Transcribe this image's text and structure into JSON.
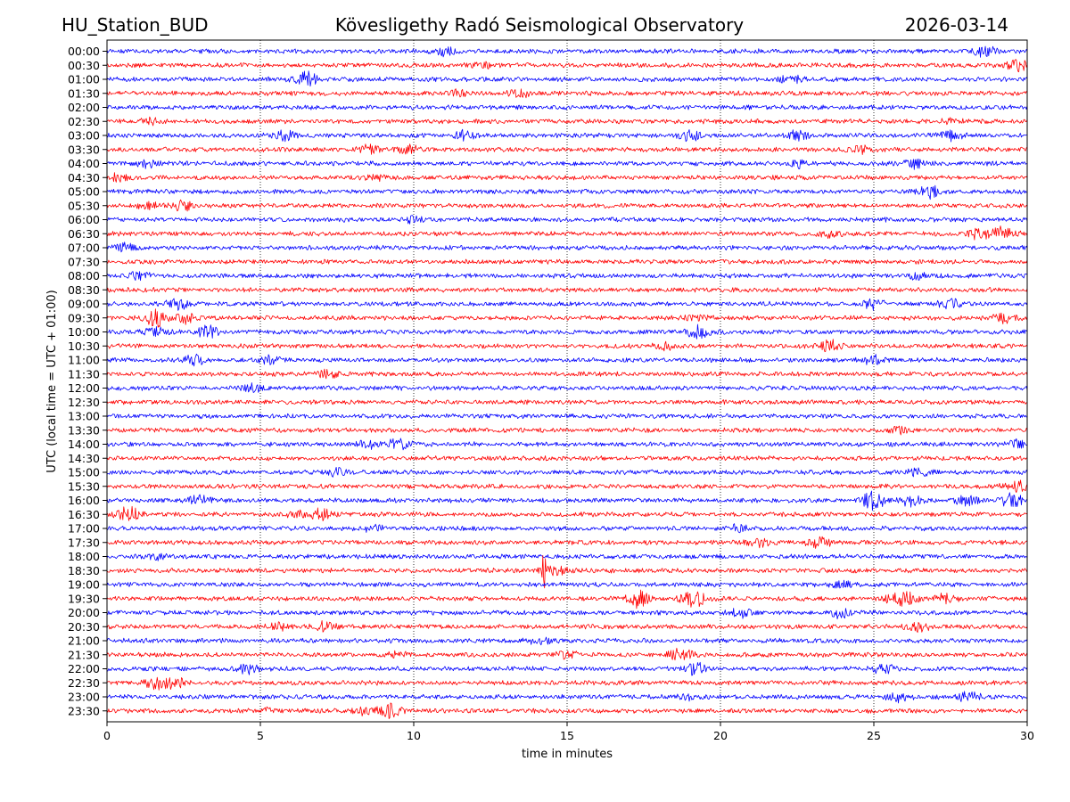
{
  "header": {
    "station": "HU_Station_BUD",
    "observatory": "Köveslig­ethy Radó Seismological Observatory",
    "date": "2026-03-14"
  },
  "chart_data": {
    "type": "line",
    "title": "Köveslig­ethy Radó Seismological Observatory",
    "xlabel": "time in minutes",
    "ylabel": "UTC (local time = UTC + 01:00)",
    "xlim": [
      0,
      30
    ],
    "xticks": [
      0,
      5,
      10,
      15,
      20,
      25,
      30
    ],
    "grid": "vertical dotted at 5-minute ticks",
    "series_colors": [
      "#0000ff",
      "#ff0000"
    ],
    "rows": [
      {
        "label": "00:00",
        "color": "#0000ff",
        "events": [
          [
            11,
            0.7
          ],
          [
            28.6,
            0.9
          ]
        ]
      },
      {
        "label": "00:30",
        "color": "#ff0000",
        "events": [
          [
            29.7,
            0.9
          ],
          [
            12.2,
            0.5
          ]
        ]
      },
      {
        "label": "01:00",
        "color": "#0000ff",
        "events": [
          [
            6.5,
            1.2
          ],
          [
            22.3,
            0.8
          ]
        ]
      },
      {
        "label": "01:30",
        "color": "#ff0000",
        "events": [
          [
            13.5,
            0.6
          ],
          [
            11.5,
            0.5
          ]
        ]
      },
      {
        "label": "02:00",
        "color": "#0000ff",
        "events": []
      },
      {
        "label": "02:30",
        "color": "#ff0000",
        "events": [
          [
            1.5,
            0.6
          ],
          [
            27.5,
            0.4
          ]
        ]
      },
      {
        "label": "03:00",
        "color": "#0000ff",
        "events": [
          [
            5.8,
            0.8
          ],
          [
            11.6,
            0.8
          ],
          [
            19,
            0.9
          ],
          [
            22.5,
            0.7
          ],
          [
            27.5,
            0.8
          ]
        ]
      },
      {
        "label": "03:30",
        "color": "#ff0000",
        "events": [
          [
            8.5,
            0.8
          ],
          [
            9.8,
            0.9
          ],
          [
            24.5,
            0.6
          ]
        ]
      },
      {
        "label": "04:00",
        "color": "#0000ff",
        "events": [
          [
            1.3,
            0.6
          ],
          [
            22.5,
            0.6
          ],
          [
            26.3,
            0.7
          ]
        ]
      },
      {
        "label": "04:30",
        "color": "#ff0000",
        "events": [
          [
            0.3,
            0.6
          ],
          [
            8.8,
            0.5
          ]
        ]
      },
      {
        "label": "05:00",
        "color": "#0000ff",
        "events": [
          [
            26.8,
            1.1
          ]
        ]
      },
      {
        "label": "05:30",
        "color": "#ff0000",
        "events": [
          [
            2.4,
            0.9
          ],
          [
            1.3,
            0.6
          ]
        ]
      },
      {
        "label": "06:00",
        "color": "#0000ff",
        "events": [
          [
            10,
            0.5
          ]
        ]
      },
      {
        "label": "06:30",
        "color": "#ff0000",
        "events": [
          [
            29.2,
            1.1
          ],
          [
            28.4,
            0.8
          ],
          [
            23.5,
            0.5
          ]
        ]
      },
      {
        "label": "07:00",
        "color": "#0000ff",
        "events": [
          [
            0.6,
            0.7
          ]
        ]
      },
      {
        "label": "07:30",
        "color": "#ff0000",
        "events": []
      },
      {
        "label": "08:00",
        "color": "#0000ff",
        "events": [
          [
            1,
            0.7
          ],
          [
            26.5,
            0.6
          ]
        ]
      },
      {
        "label": "08:30",
        "color": "#ff0000",
        "events": []
      },
      {
        "label": "09:00",
        "color": "#0000ff",
        "events": [
          [
            2.3,
            0.9
          ],
          [
            25,
            0.8
          ],
          [
            27.5,
            0.7
          ]
        ]
      },
      {
        "label": "09:30",
        "color": "#ff0000",
        "events": [
          [
            1.6,
            1.5
          ],
          [
            2.6,
            0.9
          ],
          [
            19.2,
            0.6
          ],
          [
            29.3,
            0.8
          ]
        ]
      },
      {
        "label": "10:00",
        "color": "#0000ff",
        "events": [
          [
            3.3,
            1.0
          ],
          [
            1.6,
            0.8
          ],
          [
            19.3,
            1.1
          ]
        ]
      },
      {
        "label": "10:30",
        "color": "#ff0000",
        "events": [
          [
            23.6,
            1.0
          ],
          [
            18.2,
            0.6
          ]
        ]
      },
      {
        "label": "11:00",
        "color": "#0000ff",
        "events": [
          [
            2.8,
            0.8
          ],
          [
            5.3,
            0.6
          ],
          [
            25,
            0.8
          ]
        ]
      },
      {
        "label": "11:30",
        "color": "#ff0000",
        "events": [
          [
            7.2,
            0.6
          ]
        ]
      },
      {
        "label": "12:00",
        "color": "#0000ff",
        "events": [
          [
            4.7,
            0.6
          ]
        ]
      },
      {
        "label": "12:30",
        "color": "#ff0000",
        "events": []
      },
      {
        "label": "13:00",
        "color": "#0000ff",
        "events": []
      },
      {
        "label": "13:30",
        "color": "#ff0000",
        "events": [
          [
            25.8,
            0.5
          ]
        ]
      },
      {
        "label": "14:00",
        "color": "#0000ff",
        "events": [
          [
            9.5,
            1.0
          ],
          [
            8.5,
            0.7
          ],
          [
            29.6,
            0.7
          ]
        ]
      },
      {
        "label": "14:30",
        "color": "#ff0000",
        "events": []
      },
      {
        "label": "15:00",
        "color": "#0000ff",
        "events": [
          [
            7.5,
            0.7
          ],
          [
            26.5,
            0.6
          ]
        ]
      },
      {
        "label": "15:30",
        "color": "#ff0000",
        "events": [
          [
            29.6,
            1.0
          ]
        ]
      },
      {
        "label": "16:00",
        "color": "#0000ff",
        "events": [
          [
            25,
            1.7
          ],
          [
            26.2,
            1.0
          ],
          [
            29.5,
            1.2
          ],
          [
            3,
            0.9
          ],
          [
            28,
            0.8
          ]
        ]
      },
      {
        "label": "16:30",
        "color": "#ff0000",
        "events": [
          [
            0.7,
            1.3
          ],
          [
            7,
            1.0
          ],
          [
            6.3,
            0.6
          ]
        ]
      },
      {
        "label": "17:00",
        "color": "#0000ff",
        "events": [
          [
            20.6,
            0.6
          ],
          [
            8.7,
            0.5
          ]
        ]
      },
      {
        "label": "17:30",
        "color": "#ff0000",
        "events": [
          [
            23.2,
            0.9
          ],
          [
            21.2,
            0.7
          ]
        ]
      },
      {
        "label": "18:00",
        "color": "#0000ff",
        "events": [
          [
            1.6,
            0.5
          ]
        ]
      },
      {
        "label": "18:30",
        "color": "#ff0000",
        "events": [
          [
            14.25,
            2.8,
            0.12
          ],
          [
            14.6,
            1.0
          ]
        ]
      },
      {
        "label": "19:00",
        "color": "#0000ff",
        "events": [
          [
            24,
            0.5
          ]
        ]
      },
      {
        "label": "19:30",
        "color": "#ff0000",
        "events": [
          [
            19.1,
            1.6
          ],
          [
            17.3,
            1.4
          ],
          [
            26.1,
            1.1
          ],
          [
            27.4,
            0.9
          ],
          [
            25.6,
            0.6
          ]
        ]
      },
      {
        "label": "20:00",
        "color": "#0000ff",
        "events": [
          [
            20.7,
            0.8
          ],
          [
            23.9,
            0.8
          ]
        ]
      },
      {
        "label": "20:30",
        "color": "#ff0000",
        "events": [
          [
            5.6,
            0.7
          ],
          [
            7.1,
            0.8
          ],
          [
            26.5,
            0.7
          ]
        ]
      },
      {
        "label": "21:00",
        "color": "#0000ff",
        "events": [
          [
            14.1,
            0.5
          ]
        ]
      },
      {
        "label": "21:30",
        "color": "#ff0000",
        "events": [
          [
            18.7,
            1.0
          ],
          [
            15,
            0.6
          ],
          [
            9.4,
            0.5
          ]
        ]
      },
      {
        "label": "22:00",
        "color": "#0000ff",
        "events": [
          [
            19.2,
            1.0
          ],
          [
            4.6,
            0.8
          ],
          [
            25.3,
            0.8
          ]
        ]
      },
      {
        "label": "22:30",
        "color": "#ff0000",
        "events": [
          [
            1.6,
            1.0
          ],
          [
            2.2,
            0.9
          ]
        ]
      },
      {
        "label": "23:00",
        "color": "#0000ff",
        "events": [
          [
            28.1,
            0.8
          ],
          [
            25.8,
            0.7
          ],
          [
            19,
            0.5
          ]
        ]
      },
      {
        "label": "23:30",
        "color": "#ff0000",
        "events": [
          [
            9.2,
            1.1
          ],
          [
            8.3,
            0.6
          ],
          [
            5.2,
            0.5
          ]
        ]
      }
    ]
  }
}
